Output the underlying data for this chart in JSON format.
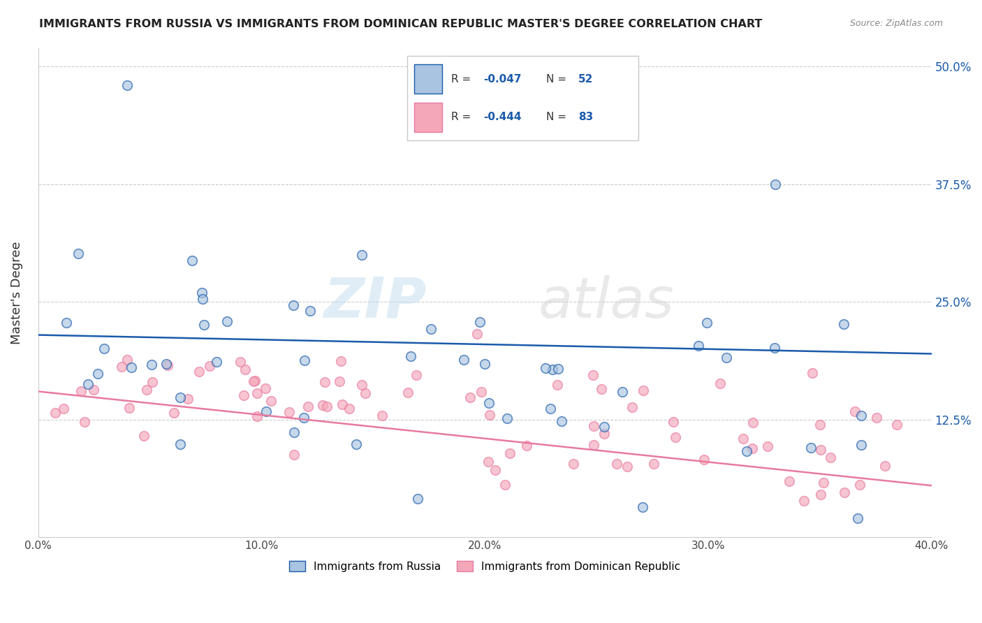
{
  "title": "IMMIGRANTS FROM RUSSIA VS IMMIGRANTS FROM DOMINICAN REPUBLIC MASTER'S DEGREE CORRELATION CHART",
  "source": "Source: ZipAtlas.com",
  "ylabel": "Master's Degree",
  "yticks": [
    "12.5%",
    "25.0%",
    "37.5%",
    "50.0%"
  ],
  "ytick_vals": [
    0.125,
    0.25,
    0.375,
    0.5
  ],
  "xlim": [
    0.0,
    0.4
  ],
  "ylim": [
    0.0,
    0.52
  ],
  "color_russia": "#a8c4e0",
  "color_dr": "#f4a7b9",
  "line_color_russia": "#1a5aab",
  "line_color_dr": "#e87aa0",
  "scatter_alpha": 0.65,
  "scatter_size": 80,
  "watermark_zip": "ZIP",
  "watermark_atlas": "atlas",
  "background_color": "#ffffff",
  "grid_color": "#cccccc",
  "russia_line_start_y": 0.215,
  "russia_line_end_y": 0.195,
  "dr_line_start_y": 0.155,
  "dr_line_end_y": 0.055
}
